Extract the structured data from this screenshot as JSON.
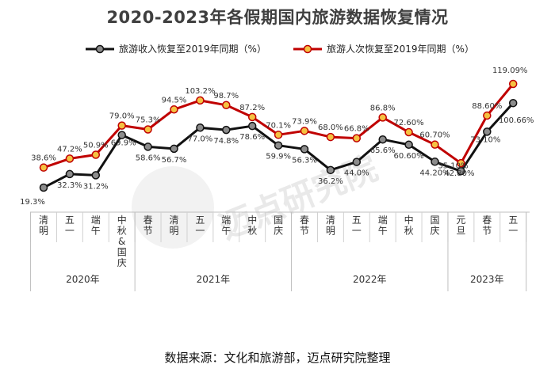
{
  "title": "2020-2023年各假期国内旅游数据恢复情况",
  "source": "数据来源：文化和旅游部，迈点研究院整理",
  "watermark": "迈点研究院",
  "chart_data": {
    "type": "line",
    "title": "2020-2023年各假期国内旅游数据恢复情况",
    "xlabel": "",
    "ylabel": "",
    "categories": [
      "清明",
      "五一",
      "端午",
      "中秋&国庆",
      "春节",
      "清明",
      "五一",
      "端午",
      "中秋",
      "国庆",
      "春节",
      "清明",
      "五一",
      "端午",
      "中秋",
      "国庆",
      "元旦",
      "春节",
      "五一"
    ],
    "year_groups": [
      {
        "label": "2020年",
        "start": 0,
        "end": 3
      },
      {
        "label": "2021年",
        "start": 4,
        "end": 9
      },
      {
        "label": "2022年",
        "start": 10,
        "end": 15
      },
      {
        "label": "2023年",
        "start": 16,
        "end": 18
      }
    ],
    "series": [
      {
        "name": "旅游收入恢复至2019年同期（%）",
        "color": "#111111",
        "marker": "#8c8c8c",
        "values": [
          19.3,
          32.3,
          31.2,
          69.9,
          58.6,
          56.7,
          77.0,
          74.8,
          78.6,
          59.9,
          56.3,
          36.2,
          44.0,
          65.6,
          60.6,
          44.2,
          35.1,
          73.1,
          100.66
        ],
        "labels": [
          "19.3%",
          "32.3%",
          "31.2%",
          "69.9%",
          "58.6%",
          "56.7%",
          "77.0%",
          "74.8%",
          "78.6%",
          "59.9%",
          "56.3%",
          "36.2%",
          "44.0%",
          "65.6%",
          "60.60%",
          "44.20%",
          "35.10%",
          "73.10%",
          "100.66%"
        ]
      },
      {
        "name": "旅游人次恢复至2019年同期（%）",
        "color": "#c00000",
        "marker": "#f5c242",
        "values": [
          38.6,
          47.2,
          50.9,
          79.0,
          75.3,
          94.5,
          103.2,
          98.7,
          87.2,
          70.1,
          73.9,
          68.0,
          66.8,
          86.8,
          72.6,
          60.7,
          42.8,
          88.6,
          119.09
        ],
        "labels": [
          "38.6%",
          "47.2%",
          "50.9%",
          "79.0%",
          "75.3%",
          "94.5%",
          "103.2%",
          "98.7%",
          "87.2%",
          "70.1%",
          "73.9%",
          "68.0%",
          "66.8%",
          "86.8%",
          "72.60%",
          "60.70%",
          "42.80%",
          "88.60%",
          "119.09%"
        ]
      }
    ],
    "legend_position": "top",
    "grid": false
  }
}
